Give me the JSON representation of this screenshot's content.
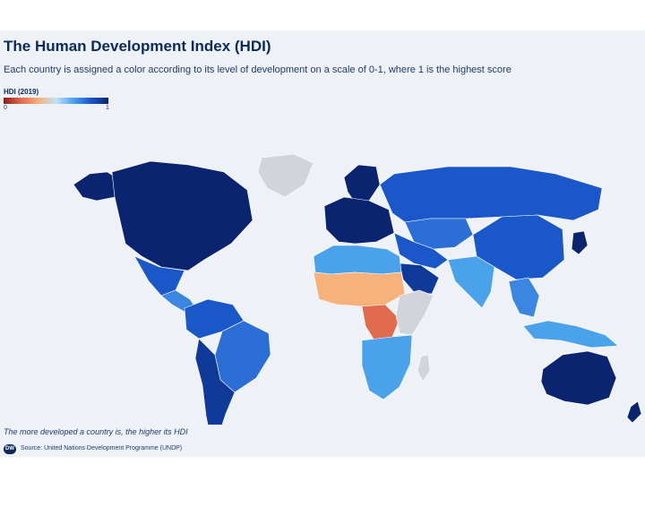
{
  "header": {
    "title": "The Human Development Index (HDI)",
    "subtitle": "Each country is assigned a color according to its level of development on a scale of 0-1, where 1 is the highest score"
  },
  "legend": {
    "title": "HDI (2019)",
    "min_label": "0",
    "max_label": "1",
    "scale": {
      "min": 0,
      "max": 1
    },
    "gradient_colors": [
      "#8b1a1a",
      "#e06b4e",
      "#f6b27a",
      "#bfe3f7",
      "#4aa3ea",
      "#1a57c9",
      "#0b2470"
    ],
    "no_data_color": "#d1d5db"
  },
  "map": {
    "background_color": "#eef2f7",
    "regions": [
      {
        "name": "north-america",
        "color": "#0b2470"
      },
      {
        "name": "greenland",
        "color": "#d1d5db"
      },
      {
        "name": "alaska",
        "color": "#0b2470"
      },
      {
        "name": "mexico",
        "color": "#1a57c9"
      },
      {
        "name": "central-america",
        "color": "#3a86e0"
      },
      {
        "name": "south-america-north",
        "color": "#1a57c9"
      },
      {
        "name": "brazil",
        "color": "#2b6fd6"
      },
      {
        "name": "south-america-south",
        "color": "#0f3a9a"
      },
      {
        "name": "europe",
        "color": "#0b2470"
      },
      {
        "name": "scandinavia",
        "color": "#0b2470"
      },
      {
        "name": "russia",
        "color": "#1a57c9"
      },
      {
        "name": "central-asia",
        "color": "#2b6fd6"
      },
      {
        "name": "china",
        "color": "#1a57c9"
      },
      {
        "name": "middle-east",
        "color": "#1a57c9"
      },
      {
        "name": "arabia",
        "color": "#0f3a9a"
      },
      {
        "name": "south-asia",
        "color": "#4aa3ea"
      },
      {
        "name": "southeast-asia",
        "color": "#3a86e0"
      },
      {
        "name": "japan",
        "color": "#0b2470"
      },
      {
        "name": "north-africa",
        "color": "#4aa3ea"
      },
      {
        "name": "sahel",
        "color": "#f6b27a"
      },
      {
        "name": "central-africa",
        "color": "#e06b4e"
      },
      {
        "name": "east-africa",
        "color": "#d1d5db"
      },
      {
        "name": "southern-africa",
        "color": "#4aa3ea"
      },
      {
        "name": "madagascar",
        "color": "#d1d5db"
      },
      {
        "name": "australia",
        "color": "#0b2470"
      },
      {
        "name": "new-zealand",
        "color": "#0b2470"
      },
      {
        "name": "indonesia",
        "color": "#4aa3ea"
      }
    ]
  },
  "footer": {
    "note": "The more developed a country is, the higher its HDI",
    "logo_text": "DW",
    "source": "Source: United Nations Development Programme (UNDP)"
  }
}
